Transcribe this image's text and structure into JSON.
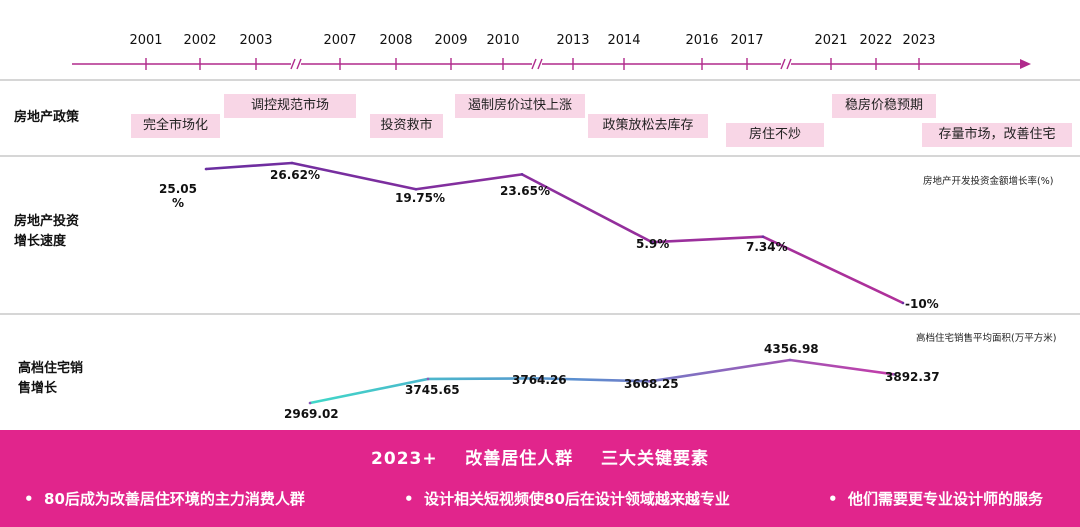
{
  "timeline": {
    "years": [
      "2001",
      "2002",
      "2003",
      "2007",
      "2008",
      "2009",
      "2010",
      "2013",
      "2014",
      "2016",
      "2017",
      "2021",
      "2022",
      "2023"
    ]
  },
  "rows": {
    "policy_label": "房地产政策",
    "investment_label": "房地产投资\n增长速度",
    "sales_label": "高档住宅销\n售增长"
  },
  "policies": [
    "完全市场化",
    "调控规范市场",
    "投资救市",
    "遏制房价过快上涨",
    "政策放松去库存",
    "房住不炒",
    "稳房价稳预期",
    "存量市场，改善住宅"
  ],
  "chart_data": [
    {
      "type": "line",
      "series": [
        {
          "name": "房地产开发投资金额增长率(%)",
          "values": [
            25.05,
            26.62,
            19.75,
            23.65,
            5.9,
            7.34,
            -10
          ],
          "labels": [
            "25.05\n%",
            "26.62%",
            "19.75%",
            "23.65%",
            "5.9%",
            "7.34%",
            "-10%"
          ]
        }
      ],
      "colors": {
        "start": "#6a2ea0",
        "end": "#b0309a"
      }
    },
    {
      "type": "line",
      "series": [
        {
          "name": "高档住宅销售平均面积(万平方米)",
          "values": [
            2969.02,
            3745.65,
            3764.26,
            3668.25,
            4356.98,
            3892.37
          ],
          "labels": [
            "2969.02",
            "3745.65",
            "3764.26",
            "3668.25",
            "4356.98",
            "3892.37"
          ]
        }
      ],
      "colors": {
        "start": "#40d8c8",
        "end": "#c43aa8"
      }
    }
  ],
  "footer": {
    "title": "2023+    改善居住人群    三大关键要素",
    "bullets": [
      "80后成为改善居住环境的主力消费人群",
      "设计相关短视频使80后在设计领域越来越专业",
      "他们需要更专业设计师的服务"
    ],
    "bullet_mark": "•"
  },
  "colors": {
    "timeline": "#b02a8c",
    "footer": "#e1258c",
    "policy_box": "#f8d6e6"
  }
}
